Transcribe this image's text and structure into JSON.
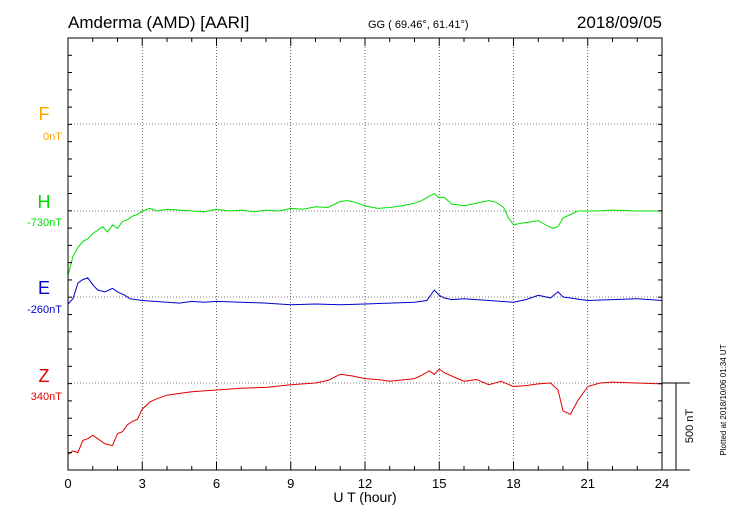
{
  "header": {
    "station": "Amderma (AMD)  [AARI]",
    "coords": "GG ( 69.46°,  61.41°)",
    "date": "2018/09/05"
  },
  "x_axis_label": "U T (hour)",
  "scale_label": "500 nT",
  "footer_note": "Plotted at 2018/10/06 01:34 UT",
  "colors": {
    "F": "#ffa500",
    "H": "#00e000",
    "E": "#0000cc",
    "Z": "#e00000",
    "axis": "#000000"
  },
  "chart_data": {
    "type": "line",
    "x_ticks": [
      "0",
      "3",
      "6",
      "9",
      "12",
      "15",
      "18",
      "21",
      "24"
    ],
    "xlim": [
      0,
      24
    ],
    "unit_note": "Each trace: offset from listed baseline; vertical scale bar = 500 nT",
    "series": [
      {
        "name": "F",
        "baseline": "0nT",
        "values": []
      },
      {
        "name": "H",
        "baseline": "-730nT",
        "x": [
          0,
          0.2,
          0.4,
          0.6,
          0.8,
          1.0,
          1.2,
          1.4,
          1.6,
          1.8,
          2.0,
          2.2,
          2.4,
          2.6,
          2.8,
          3.0,
          3.3,
          3.6,
          4.0,
          4.5,
          5.0,
          5.5,
          6.0,
          6.5,
          7.0,
          7.5,
          8.0,
          8.5,
          9.0,
          9.5,
          10.0,
          10.5,
          11.0,
          11.3,
          11.6,
          12.0,
          12.5,
          13.0,
          13.5,
          14.0,
          14.3,
          14.6,
          14.8,
          15.0,
          15.2,
          15.5,
          16.0,
          16.5,
          17.0,
          17.3,
          17.6,
          17.8,
          18.0,
          18.3,
          18.6,
          19.0,
          19.3,
          19.6,
          19.8,
          20.0,
          20.3,
          20.6,
          21.0,
          21.5,
          22.0,
          22.5,
          23.0,
          23.5,
          24.0
        ],
        "values": [
          -370,
          -260,
          -210,
          -175,
          -160,
          -130,
          -110,
          -90,
          -120,
          -80,
          -100,
          -60,
          -50,
          -30,
          -20,
          0,
          15,
          0,
          10,
          5,
          0,
          -5,
          10,
          0,
          5,
          -5,
          5,
          0,
          15,
          10,
          25,
          20,
          55,
          60,
          50,
          30,
          15,
          20,
          30,
          45,
          60,
          85,
          100,
          75,
          80,
          40,
          30,
          45,
          60,
          50,
          20,
          -40,
          -80,
          -70,
          -65,
          -55,
          -80,
          -100,
          -90,
          -40,
          -20,
          0,
          0,
          2,
          5,
          3,
          0,
          0,
          0
        ]
      },
      {
        "name": "E",
        "baseline": "-260nT",
        "x": [
          0,
          0.2,
          0.4,
          0.6,
          0.8,
          1.0,
          1.2,
          1.5,
          1.8,
          2.0,
          2.3,
          2.5,
          3.0,
          3.5,
          4.0,
          4.5,
          5.0,
          5.5,
          6.0,
          7.0,
          8.0,
          9.0,
          10.0,
          11.0,
          12.0,
          13.0,
          14.0,
          14.5,
          14.8,
          15.0,
          15.2,
          15.5,
          16.0,
          17.0,
          17.5,
          18.0,
          18.5,
          19.0,
          19.5,
          19.8,
          20.0,
          20.5,
          21.0,
          22.0,
          23.0,
          24.0
        ],
        "values": [
          -40,
          -10,
          80,
          100,
          110,
          70,
          40,
          30,
          50,
          30,
          10,
          -10,
          -20,
          -25,
          -30,
          -35,
          -25,
          -30,
          -25,
          -30,
          -35,
          -45,
          -40,
          -45,
          -40,
          -35,
          -30,
          -20,
          40,
          10,
          -5,
          -15,
          -10,
          -20,
          -25,
          -30,
          -15,
          10,
          -5,
          30,
          0,
          -10,
          -20,
          -15,
          -10,
          -20
        ]
      },
      {
        "name": "Z",
        "baseline": "340nT",
        "x": [
          0,
          0.2,
          0.4,
          0.6,
          0.8,
          1.0,
          1.2,
          1.5,
          1.8,
          2.0,
          2.2,
          2.4,
          2.6,
          2.8,
          3.0,
          3.3,
          3.6,
          4.0,
          4.5,
          5.0,
          6.0,
          7.0,
          8.0,
          9.0,
          10.0,
          10.5,
          11.0,
          11.5,
          12.0,
          12.5,
          13.0,
          14.0,
          14.3,
          14.6,
          14.8,
          15.0,
          15.2,
          15.5,
          16.0,
          16.5,
          17.0,
          17.5,
          18.0,
          18.5,
          19.0,
          19.5,
          19.8,
          20.0,
          20.3,
          20.6,
          21.0,
          21.5,
          22.0,
          23.0,
          24.0
        ],
        "values": [
          -410,
          -390,
          -400,
          -330,
          -320,
          -300,
          -320,
          -350,
          -360,
          -290,
          -280,
          -240,
          -220,
          -210,
          -150,
          -110,
          -90,
          -70,
          -60,
          -50,
          -40,
          -30,
          -25,
          -10,
          0,
          15,
          50,
          40,
          25,
          20,
          10,
          25,
          45,
          70,
          50,
          80,
          60,
          40,
          10,
          20,
          -10,
          10,
          -20,
          -15,
          -5,
          0,
          -40,
          -160,
          -180,
          -100,
          -20,
          0,
          5,
          0,
          -5
        ]
      }
    ]
  }
}
